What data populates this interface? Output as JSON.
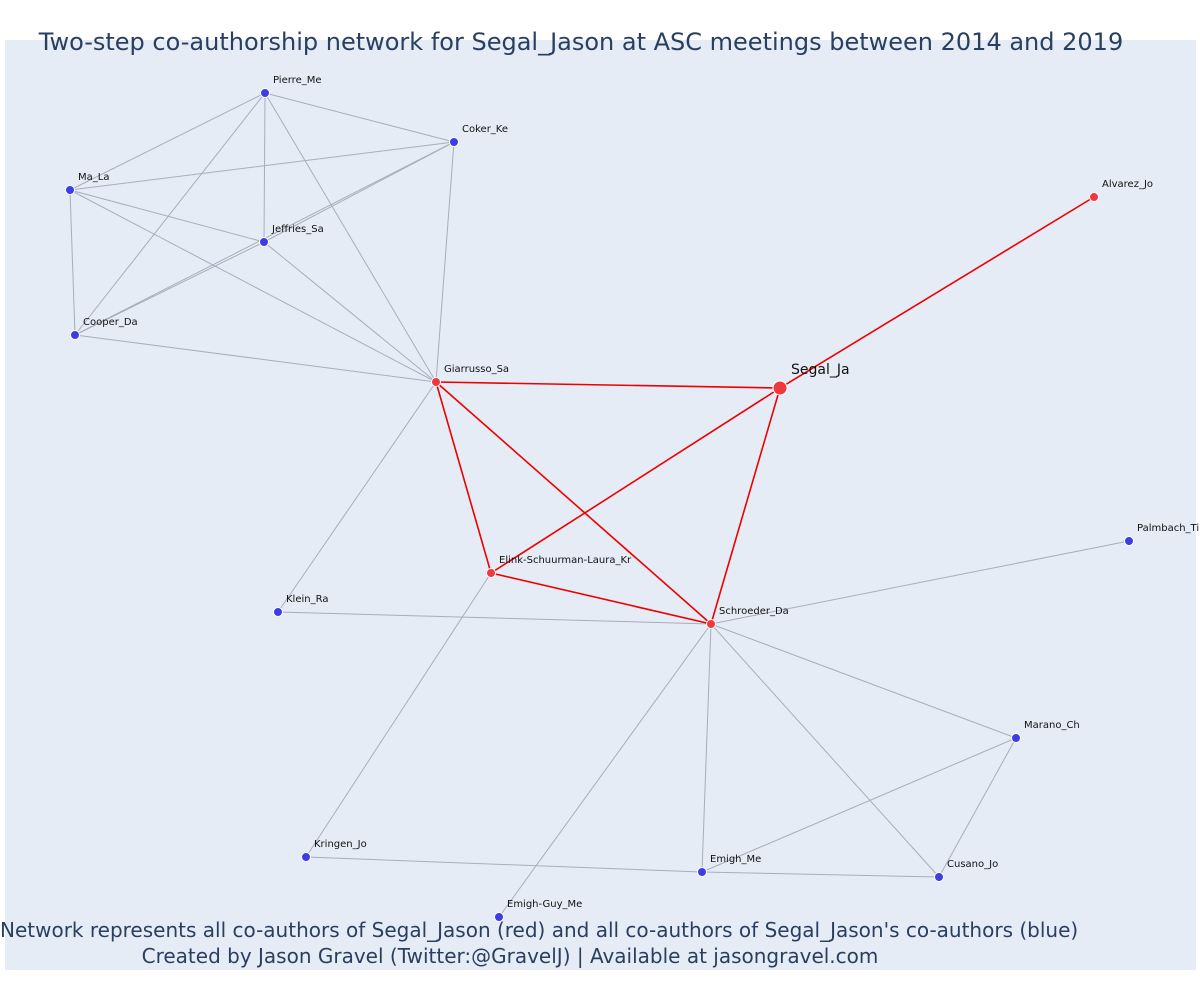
{
  "title": "Two-step co-authorship network for Segal_Jason at ASC meetings between 2014 and 2019",
  "caption": {
    "line1": "Network represents all co-authors of Segal_Jason (red) and all co-authors of Segal_Jason's co-authors (blue)",
    "line2": "Created by Jason Gravel (Twitter:@GravelJ) | Available at jasongravel.com"
  },
  "colors": {
    "plot_background": "#e5ecf6",
    "co_author": "#f0393d",
    "second_step": "#3d3de8",
    "direct_edge": "#ee0000",
    "indirect_edge": "#a8adbd"
  },
  "nodes": [
    {
      "id": "Segal_Ja",
      "group": "focal"
    },
    {
      "id": "Alvarez_Jo",
      "group": "co-author"
    },
    {
      "id": "Giarrusso_Sa",
      "group": "co-author"
    },
    {
      "id": "Elink-Schuurman-Laura_Kr",
      "group": "co-author"
    },
    {
      "id": "Schroeder_Da",
      "group": "co-author"
    },
    {
      "id": "Pierre_Me",
      "group": "second-step"
    },
    {
      "id": "Coker_Ke",
      "group": "second-step"
    },
    {
      "id": "Ma_La",
      "group": "second-step"
    },
    {
      "id": "Jeffries_Sa",
      "group": "second-step"
    },
    {
      "id": "Cooper_Da",
      "group": "second-step"
    },
    {
      "id": "Klein_Ra",
      "group": "second-step"
    },
    {
      "id": "Palmbach_Ti",
      "group": "second-step"
    },
    {
      "id": "Marano_Ch",
      "group": "second-step"
    },
    {
      "id": "Kringen_Jo",
      "group": "second-step"
    },
    {
      "id": "Emigh_Me",
      "group": "second-step"
    },
    {
      "id": "Cusano_Jo",
      "group": "second-step"
    },
    {
      "id": "Emigh-Guy_Me",
      "group": "second-step"
    }
  ],
  "edges": [
    {
      "source": "Segal_Ja",
      "target": "Alvarez_Jo",
      "type": "direct"
    },
    {
      "source": "Segal_Ja",
      "target": "Giarrusso_Sa",
      "type": "direct"
    },
    {
      "source": "Segal_Ja",
      "target": "Elink-Schuurman-Laura_Kr",
      "type": "direct"
    },
    {
      "source": "Segal_Ja",
      "target": "Schroeder_Da",
      "type": "direct"
    },
    {
      "source": "Giarrusso_Sa",
      "target": "Elink-Schuurman-Laura_Kr",
      "type": "direct"
    },
    {
      "source": "Giarrusso_Sa",
      "target": "Schroeder_Da",
      "type": "direct"
    },
    {
      "source": "Elink-Schuurman-Laura_Kr",
      "target": "Schroeder_Da",
      "type": "direct"
    },
    {
      "source": "Pierre_Me",
      "target": "Coker_Ke",
      "type": "indirect"
    },
    {
      "source": "Pierre_Me",
      "target": "Ma_La",
      "type": "indirect"
    },
    {
      "source": "Pierre_Me",
      "target": "Jeffries_Sa",
      "type": "indirect"
    },
    {
      "source": "Pierre_Me",
      "target": "Cooper_Da",
      "type": "indirect"
    },
    {
      "source": "Pierre_Me",
      "target": "Giarrusso_Sa",
      "type": "indirect"
    },
    {
      "source": "Ma_La",
      "target": "Coker_Ke",
      "type": "indirect"
    },
    {
      "source": "Ma_La",
      "target": "Jeffries_Sa",
      "type": "indirect"
    },
    {
      "source": "Ma_La",
      "target": "Cooper_Da",
      "type": "indirect"
    },
    {
      "source": "Ma_La",
      "target": "Giarrusso_Sa",
      "type": "indirect"
    },
    {
      "source": "Coker_Ke",
      "target": "Jeffries_Sa",
      "type": "indirect"
    },
    {
      "source": "Coker_Ke",
      "target": "Cooper_Da",
      "type": "indirect"
    },
    {
      "source": "Coker_Ke",
      "target": "Giarrusso_Sa",
      "type": "indirect"
    },
    {
      "source": "Jeffries_Sa",
      "target": "Cooper_Da",
      "type": "indirect"
    },
    {
      "source": "Jeffries_Sa",
      "target": "Giarrusso_Sa",
      "type": "indirect"
    },
    {
      "source": "Cooper_Da",
      "target": "Giarrusso_Sa",
      "type": "indirect"
    },
    {
      "source": "Giarrusso_Sa",
      "target": "Klein_Ra",
      "type": "indirect"
    },
    {
      "source": "Klein_Ra",
      "target": "Schroeder_Da",
      "type": "indirect"
    },
    {
      "source": "Elink-Schuurman-Laura_Kr",
      "target": "Kringen_Jo",
      "type": "indirect"
    },
    {
      "source": "Schroeder_Da",
      "target": "Palmbach_Ti",
      "type": "indirect"
    },
    {
      "source": "Schroeder_Da",
      "target": "Marano_Ch",
      "type": "indirect"
    },
    {
      "source": "Schroeder_Da",
      "target": "Emigh_Me",
      "type": "indirect"
    },
    {
      "source": "Schroeder_Da",
      "target": "Cusano_Jo",
      "type": "indirect"
    },
    {
      "source": "Schroeder_Da",
      "target": "Emigh-Guy_Me",
      "type": "indirect"
    },
    {
      "source": "Kringen_Jo",
      "target": "Emigh_Me",
      "type": "indirect"
    },
    {
      "source": "Emigh_Me",
      "target": "Marano_Ch",
      "type": "indirect"
    },
    {
      "source": "Emigh_Me",
      "target": "Cusano_Jo",
      "type": "indirect"
    },
    {
      "source": "Marano_Ch",
      "target": "Cusano_Jo",
      "type": "indirect"
    }
  ]
}
